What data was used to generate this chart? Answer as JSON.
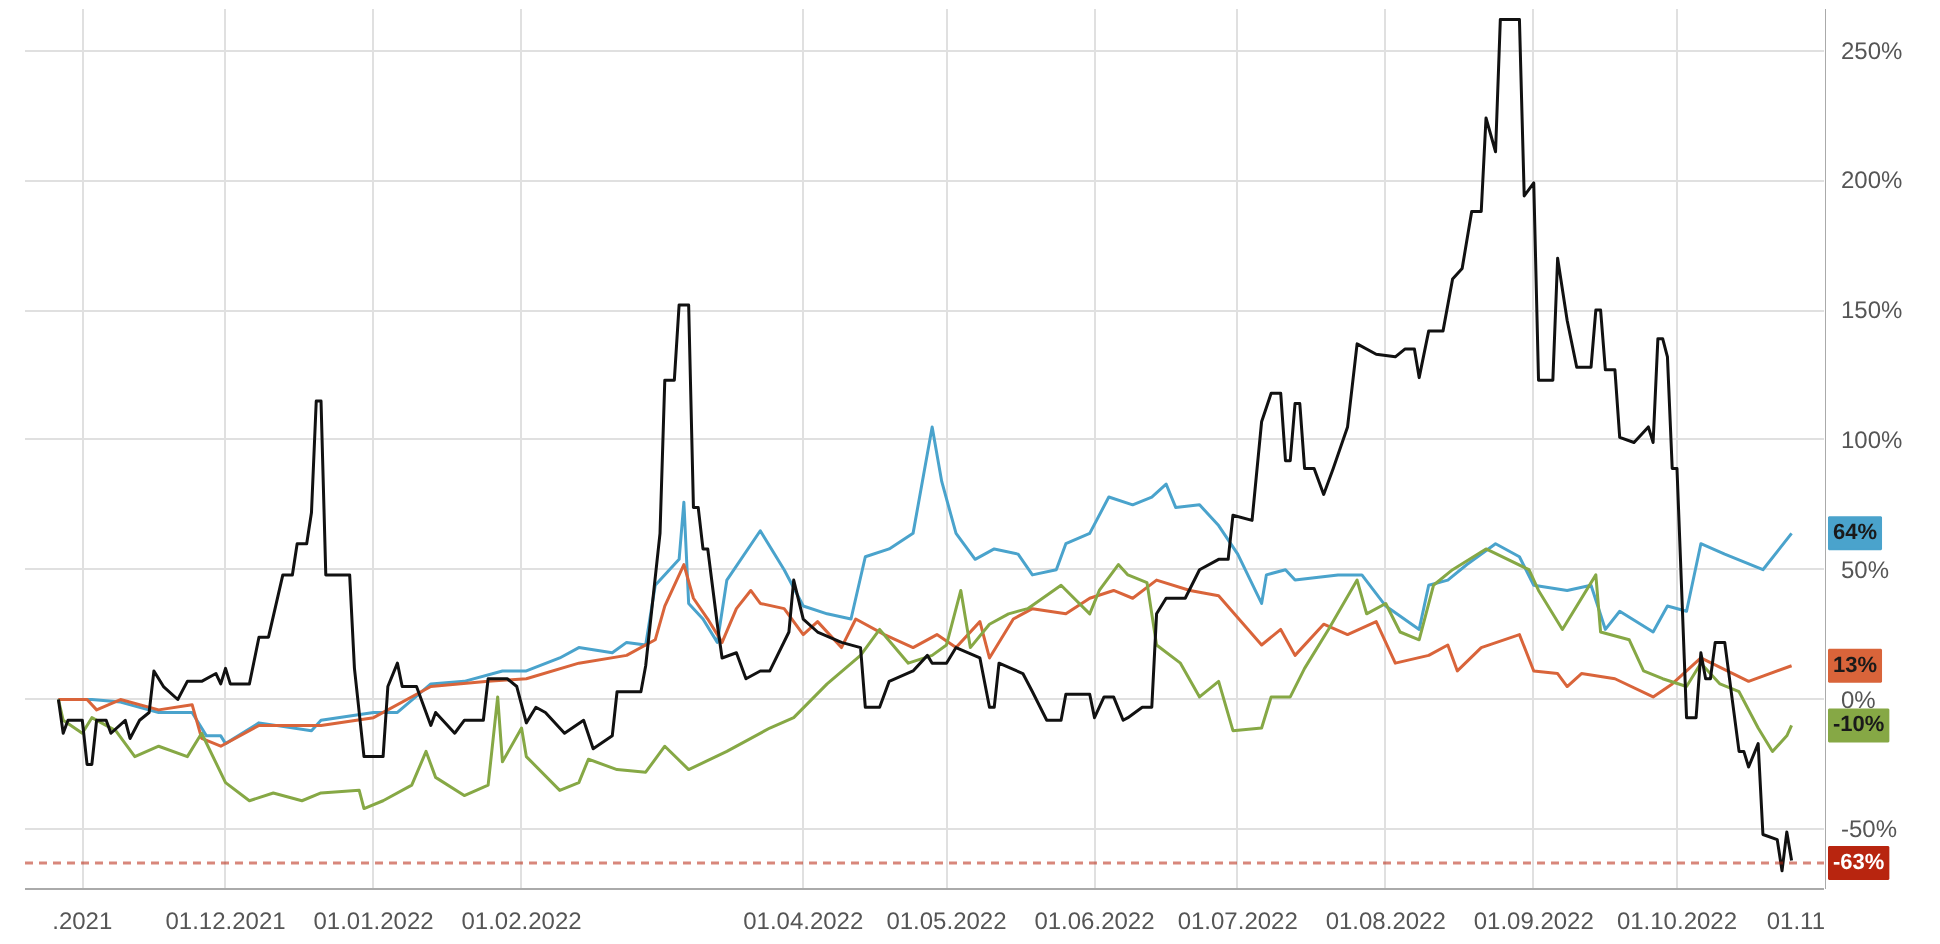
{
  "chart_data": {
    "type": "line",
    "grid": true,
    "xlim": [
      "2021-10-20",
      "2022-11-01"
    ],
    "xticks": [
      {
        "value": "2021-11-01",
        "label": ".2021"
      },
      {
        "value": "2021-12-01",
        "label": "01.12.2021"
      },
      {
        "value": "2022-01-01",
        "label": "01.01.2022"
      },
      {
        "value": "2022-02-01",
        "label": "01.02.2022"
      },
      {
        "value": "2022-04-01",
        "label": "01.04.2022"
      },
      {
        "value": "2022-05-01",
        "label": "01.05.2022"
      },
      {
        "value": "2022-06-01",
        "label": "01.06.2022"
      },
      {
        "value": "2022-07-01",
        "label": "01.07.2022"
      },
      {
        "value": "2022-08-01",
        "label": "01.08.2022"
      },
      {
        "value": "2022-09-01",
        "label": "01.09.2022"
      },
      {
        "value": "2022-10-01",
        "label": "01.10.2022"
      },
      {
        "value": "2022-11-01",
        "label": "01.11"
      }
    ],
    "ylim": [
      -73,
      266
    ],
    "yticks": [
      {
        "value": -50,
        "label": "-50%"
      },
      {
        "value": 0,
        "label": "0%"
      },
      {
        "value": 50,
        "label": "50%"
      },
      {
        "value": 100,
        "label": "100%"
      },
      {
        "value": 150,
        "label": "150%"
      },
      {
        "value": 200,
        "label": "200%"
      },
      {
        "value": 250,
        "label": "250%"
      }
    ],
    "ref_lines": [
      {
        "axis": "y",
        "value": -63,
        "label": "-63%",
        "color": "#b8250f",
        "line_style": "dashed"
      }
    ],
    "series": [
      {
        "color": "#4aa3cc",
        "value_labels": [
          null,
          null,
          null,
          null,
          null,
          null,
          null,
          null,
          null,
          null,
          null,
          null,
          null,
          null,
          null,
          null,
          null,
          null,
          null,
          null,
          null,
          null,
          null,
          null,
          null,
          null,
          null,
          null,
          null,
          null,
          null,
          null,
          null,
          null,
          null,
          null,
          null,
          null,
          null,
          null,
          null,
          null,
          null,
          null,
          null,
          null,
          null,
          null,
          null,
          null,
          null,
          null,
          null,
          null,
          null,
          null,
          null,
          null,
          null,
          null,
          null,
          null,
          null,
          null,
          null,
          null,
          null,
          null,
          null,
          null,
          null,
          null,
          null,
          null,
          null,
          null,
          null,
          null,
          null,
          "64%"
        ],
        "x": [
          "2021-10-27",
          "2021-11-03",
          "2021-11-09",
          "2021-11-17",
          "2021-11-24",
          "2021-11-27",
          "2021-11-30",
          "2021-12-01",
          "2021-12-08",
          "2021-12-19",
          "2021-12-21",
          "2022-01-01",
          "2022-01-06",
          "2022-01-13",
          "2022-01-20",
          "2022-01-28",
          "2022-02-02",
          "2022-02-09",
          "2022-02-13",
          "2022-02-20",
          "2022-02-23",
          "2022-02-27",
          "2022-03-01",
          "2022-03-06",
          "2022-03-07",
          "2022-03-08",
          "2022-03-11",
          "2022-03-14",
          "2022-03-16",
          "2022-03-23",
          "2022-03-28",
          "2022-04-01",
          "2022-04-06",
          "2022-04-11",
          "2022-04-14",
          "2022-04-19",
          "2022-04-24",
          "2022-04-28",
          "2022-04-30",
          "2022-05-03",
          "2022-05-07",
          "2022-05-11",
          "2022-05-16",
          "2022-05-19",
          "2022-05-24",
          "2022-05-26",
          "2022-05-31",
          "2022-06-04",
          "2022-06-09",
          "2022-06-13",
          "2022-06-16",
          "2022-06-18",
          "2022-06-23",
          "2022-06-27",
          "2022-07-01",
          "2022-07-06",
          "2022-07-07",
          "2022-07-11",
          "2022-07-13",
          "2022-07-22",
          "2022-07-27",
          "2022-08-01",
          "2022-08-08",
          "2022-08-10",
          "2022-08-14",
          "2022-08-18",
          "2022-08-24",
          "2022-08-29",
          "2022-09-01",
          "2022-09-08",
          "2022-09-13",
          "2022-09-16",
          "2022-09-19",
          "2022-09-26",
          "2022-09-29",
          "2022-10-03",
          "2022-10-06",
          "2022-10-11",
          "2022-10-19",
          "2022-10-25"
        ],
        "values": [
          0,
          0,
          -1,
          -5,
          -5,
          -14,
          -14,
          -17,
          -9,
          -12,
          -8,
          -5,
          -5,
          6,
          7,
          11,
          11,
          16,
          20,
          18,
          22,
          21,
          44,
          54,
          76,
          37,
          31,
          22,
          46,
          65,
          50,
          36,
          33,
          31,
          55,
          58,
          64,
          105,
          84,
          64,
          54,
          58,
          56,
          48,
          50,
          60,
          64,
          78,
          75,
          78,
          83,
          74,
          75,
          67,
          56,
          37,
          48,
          50,
          46,
          48,
          48,
          36,
          27,
          44,
          46,
          52,
          60,
          55,
          44,
          42,
          44,
          27,
          34,
          26,
          36,
          34,
          60,
          56,
          50,
          64
        ]
      },
      {
        "color": "#d9643a",
        "value_labels": [
          null,
          null,
          null,
          null,
          null,
          null,
          null,
          null,
          null,
          null,
          null,
          null,
          null,
          null,
          null,
          null,
          null,
          null,
          null,
          null,
          null,
          null,
          null,
          null,
          null,
          null,
          null,
          null,
          null,
          null,
          null,
          null,
          null,
          null,
          null,
          null,
          null,
          null,
          null,
          null,
          null,
          null,
          null,
          null,
          null,
          null,
          null,
          null,
          null,
          null,
          null,
          null,
          null,
          null,
          null,
          null,
          null,
          null,
          null,
          null,
          null,
          null,
          null,
          null,
          null,
          null,
          "13%"
        ],
        "x": [
          "2021-10-27",
          "2021-11-02",
          "2021-11-04",
          "2021-11-09",
          "2021-11-17",
          "2021-11-24",
          "2021-11-26",
          "2021-11-30",
          "2021-12-08",
          "2021-12-21",
          "2022-01-01",
          "2022-01-13",
          "2022-01-25",
          "2022-02-02",
          "2022-02-13",
          "2022-02-23",
          "2022-03-01",
          "2022-03-03",
          "2022-03-07",
          "2022-03-09",
          "2022-03-12",
          "2022-03-15",
          "2022-03-18",
          "2022-03-21",
          "2022-03-23",
          "2022-03-28",
          "2022-04-01",
          "2022-04-04",
          "2022-04-09",
          "2022-04-12",
          "2022-04-18",
          "2022-04-24",
          "2022-04-29",
          "2022-05-03",
          "2022-05-08",
          "2022-05-10",
          "2022-05-15",
          "2022-05-19",
          "2022-05-26",
          "2022-05-31",
          "2022-06-05",
          "2022-06-09",
          "2022-06-14",
          "2022-06-21",
          "2022-06-27",
          "2022-07-06",
          "2022-07-10",
          "2022-07-13",
          "2022-07-19",
          "2022-07-24",
          "2022-07-30",
          "2022-08-03",
          "2022-08-10",
          "2022-08-14",
          "2022-08-16",
          "2022-08-21",
          "2022-08-29",
          "2022-09-01",
          "2022-09-06",
          "2022-09-08",
          "2022-09-11",
          "2022-09-18",
          "2022-09-26",
          "2022-09-30",
          "2022-10-06",
          "2022-10-16",
          "2022-10-25"
        ],
        "values": [
          0,
          0,
          -4,
          0,
          -4,
          -2,
          -15,
          -18,
          -10,
          -10,
          -7,
          5,
          7,
          8,
          14,
          17,
          23,
          36,
          52,
          39,
          31,
          22,
          35,
          42,
          37,
          35,
          25,
          30,
          20,
          31,
          25,
          20,
          25,
          20,
          30,
          16,
          31,
          35,
          33,
          39,
          42,
          39,
          46,
          42,
          40,
          21,
          27,
          17,
          29,
          25,
          30,
          14,
          17,
          21,
          11,
          20,
          25,
          11,
          10,
          5,
          10,
          8,
          1,
          6,
          16,
          7,
          13
        ]
      },
      {
        "color": "#86a845",
        "value_labels": [
          null,
          null,
          null,
          null,
          null,
          null,
          null,
          null,
          null,
          null,
          null,
          null,
          null,
          null,
          null,
          null,
          null,
          null,
          null,
          null,
          null,
          null,
          null,
          null,
          null,
          null,
          null,
          null,
          null,
          null,
          null,
          null,
          null,
          null,
          null,
          null,
          null,
          null,
          null,
          null,
          null,
          null,
          null,
          null,
          null,
          null,
          null,
          null,
          null,
          null,
          null,
          null,
          null,
          null,
          null,
          null,
          null,
          null,
          null,
          null,
          null,
          null,
          null,
          null,
          null,
          null,
          null,
          null,
          null,
          null,
          null,
          null,
          null,
          null,
          null,
          null,
          null,
          null,
          null,
          null,
          null,
          null,
          null,
          null,
          null,
          null,
          "-10%"
        ],
        "x": [
          "2021-10-27",
          "2021-10-28",
          "2021-11-01",
          "2021-11-03",
          "2021-11-08",
          "2021-11-12",
          "2021-11-17",
          "2021-11-23",
          "2021-11-26",
          "2021-12-01",
          "2021-12-06",
          "2021-12-11",
          "2021-12-17",
          "2021-12-21",
          "2021-12-29",
          "2021-12-30",
          "2022-01-03",
          "2022-01-09",
          "2022-01-12",
          "2022-01-14",
          "2022-01-20",
          "2022-01-25",
          "2022-01-27",
          "2022-01-28",
          "2022-02-01",
          "2022-02-02",
          "2022-02-09",
          "2022-02-13",
          "2022-02-15",
          "2022-02-21",
          "2022-02-27",
          "2022-03-03",
          "2022-03-08",
          "2022-03-16",
          "2022-03-25",
          "2022-03-30",
          "2022-04-06",
          "2022-04-13",
          "2022-04-17",
          "2022-04-23",
          "2022-04-28",
          "2022-05-01",
          "2022-05-04",
          "2022-05-06",
          "2022-05-10",
          "2022-05-14",
          "2022-05-18",
          "2022-05-25",
          "2022-05-31",
          "2022-06-02",
          "2022-06-06",
          "2022-06-08",
          "2022-06-12",
          "2022-06-14",
          "2022-06-19",
          "2022-06-23",
          "2022-06-27",
          "2022-06-30",
          "2022-07-06",
          "2022-07-08",
          "2022-07-12",
          "2022-07-15",
          "2022-07-20",
          "2022-07-26",
          "2022-07-28",
          "2022-08-01",
          "2022-08-04",
          "2022-08-08",
          "2022-08-11",
          "2022-08-15",
          "2022-08-22",
          "2022-08-31",
          "2022-09-02",
          "2022-09-07",
          "2022-09-14",
          "2022-09-15",
          "2022-09-21",
          "2022-09-24",
          "2022-09-28",
          "2022-10-03",
          "2022-10-06",
          "2022-10-10",
          "2022-10-14",
          "2022-10-18",
          "2022-10-21",
          "2022-10-24",
          "2022-10-25"
        ],
        "values": [
          0,
          -8,
          -13,
          -7,
          -12,
          -22,
          -18,
          -22,
          -13,
          -32,
          -39,
          -36,
          -39,
          -36,
          -35,
          -42,
          -39,
          -33,
          -20,
          -30,
          -37,
          -33,
          1,
          -24,
          -11,
          -22,
          -35,
          -32,
          -23,
          -27,
          -28,
          -18,
          -27,
          -20,
          -11,
          -7,
          6,
          17,
          27,
          14,
          17,
          21,
          42,
          20,
          29,
          33,
          35,
          44,
          33,
          42,
          52,
          48,
          45,
          21,
          14,
          1,
          7,
          -12,
          -11,
          1,
          1,
          12,
          27,
          46,
          33,
          37,
          26,
          23,
          44,
          50,
          58,
          50,
          42,
          27,
          48,
          26,
          23,
          11,
          8,
          5,
          14,
          6,
          3,
          -11,
          -20,
          -14,
          -10
        ]
      },
      {
        "color": "#111111",
        "x": [
          "2021-10-27",
          "2021-10-28",
          "2021-10-29",
          "2021-11-01",
          "2021-11-02",
          "2021-11-03",
          "2021-11-04",
          "2021-11-06",
          "2021-11-07",
          "2021-11-10",
          "2021-11-11",
          "2021-11-13",
          "2021-11-15",
          "2021-11-16",
          "2021-11-18",
          "2021-11-21",
          "2021-11-23",
          "2021-11-26",
          "2021-11-29",
          "2021-11-30",
          "2021-12-01",
          "2021-12-02",
          "2021-12-06",
          "2021-12-08",
          "2021-12-10",
          "2021-12-13",
          "2021-12-15",
          "2021-12-16",
          "2021-12-18",
          "2021-12-19",
          "2021-12-20",
          "2021-12-21",
          "2021-12-22",
          "2021-12-27",
          "2021-12-28",
          "2021-12-30",
          "2022-01-03",
          "2022-01-04",
          "2022-01-06",
          "2022-01-07",
          "2022-01-10",
          "2022-01-13",
          "2022-01-14",
          "2022-01-18",
          "2022-01-20",
          "2022-01-24",
          "2022-01-25",
          "2022-01-29",
          "2022-01-31",
          "2022-02-02",
          "2022-02-04",
          "2022-02-06",
          "2022-02-10",
          "2022-02-14",
          "2022-02-16",
          "2022-02-20",
          "2022-02-21",
          "2022-02-26",
          "2022-02-27",
          "2022-03-02",
          "2022-03-03",
          "2022-03-05",
          "2022-03-06",
          "2022-03-08",
          "2022-03-09",
          "2022-03-10",
          "2022-03-11",
          "2022-03-12",
          "2022-03-14",
          "2022-03-15",
          "2022-03-18",
          "2022-03-20",
          "2022-03-23",
          "2022-03-25",
          "2022-03-29",
          "2022-03-30",
          "2022-04-01",
          "2022-04-04",
          "2022-04-09",
          "2022-04-13",
          "2022-04-14",
          "2022-04-17",
          "2022-04-19",
          "2022-04-24",
          "2022-04-27",
          "2022-04-28",
          "2022-05-01",
          "2022-05-03",
          "2022-05-08",
          "2022-05-10",
          "2022-05-11",
          "2022-05-12",
          "2022-05-17",
          "2022-05-19",
          "2022-05-22",
          "2022-05-25",
          "2022-05-26",
          "2022-05-31",
          "2022-06-01",
          "2022-06-03",
          "2022-06-05",
          "2022-06-07",
          "2022-06-08",
          "2022-06-11",
          "2022-06-13",
          "2022-06-14",
          "2022-06-16",
          "2022-06-20",
          "2022-06-23",
          "2022-06-27",
          "2022-06-29",
          "2022-06-30",
          "2022-07-04",
          "2022-07-06",
          "2022-07-08",
          "2022-07-10",
          "2022-07-11",
          "2022-07-12",
          "2022-07-13",
          "2022-07-14",
          "2022-07-15",
          "2022-07-17",
          "2022-07-19",
          "2022-07-21",
          "2022-07-24",
          "2022-07-26",
          "2022-07-30",
          "2022-08-03",
          "2022-08-05",
          "2022-08-07",
          "2022-08-08",
          "2022-08-10",
          "2022-08-13",
          "2022-08-15",
          "2022-08-17",
          "2022-08-19",
          "2022-08-21",
          "2022-08-22",
          "2022-08-24",
          "2022-08-25",
          "2022-08-29",
          "2022-08-30",
          "2022-09-01",
          "2022-09-02",
          "2022-09-05",
          "2022-09-06",
          "2022-09-08",
          "2022-09-10",
          "2022-09-13",
          "2022-09-14",
          "2022-09-15",
          "2022-09-16",
          "2022-09-18",
          "2022-09-19",
          "2022-09-22",
          "2022-09-25",
          "2022-09-26",
          "2022-09-27",
          "2022-09-28",
          "2022-09-29",
          "2022-09-30",
          "2022-10-01",
          "2022-10-03",
          "2022-10-05",
          "2022-10-06",
          "2022-10-07",
          "2022-10-08",
          "2022-10-09",
          "2022-10-11",
          "2022-10-14",
          "2022-10-15",
          "2022-10-16",
          "2022-10-18",
          "2022-10-19",
          "2022-10-22",
          "2022-10-23",
          "2022-10-24",
          "2022-10-25"
        ],
        "values": [
          0,
          -13,
          -8,
          -8,
          -25,
          -25,
          -8,
          -8,
          -13,
          -8,
          -15,
          -8,
          -5,
          11,
          5,
          0,
          7,
          7,
          10,
          6,
          12,
          6,
          6,
          24,
          24,
          48,
          48,
          60,
          60,
          72,
          115,
          115,
          48,
          48,
          12,
          -22,
          -22,
          5,
          14,
          5,
          5,
          -10,
          -5,
          -13,
          -8,
          -8,
          8,
          8,
          5,
          -9,
          -3,
          -5,
          -13,
          -8,
          -19,
          -14,
          3,
          3,
          13,
          64,
          123,
          123,
          152,
          152,
          74,
          74,
          58,
          58,
          29,
          16,
          18,
          8,
          11,
          11,
          26,
          46,
          31,
          26,
          22,
          20,
          -3,
          -3,
          7,
          11,
          17,
          14,
          14,
          20,
          16,
          -3,
          -3,
          14,
          10,
          3,
          -8,
          -8,
          2,
          2,
          -7,
          1,
          1,
          -8,
          -7,
          -3,
          -3,
          33,
          39,
          39,
          50,
          54,
          54,
          71,
          69,
          107,
          118,
          118,
          92,
          92,
          114,
          114,
          89,
          89,
          79,
          89,
          105,
          137,
          133,
          132,
          135,
          135,
          124,
          142,
          142,
          162,
          166,
          188,
          188,
          224,
          211,
          262,
          262,
          194,
          199,
          123,
          123,
          170,
          146,
          128,
          128,
          150,
          150,
          127,
          127,
          101,
          99,
          105,
          99,
          139,
          139,
          132,
          89,
          89,
          -7,
          -7,
          18,
          8,
          8,
          22,
          22,
          -20,
          -20,
          -26,
          -17,
          -52,
          -54,
          -66,
          -51,
          -62
        ]
      }
    ]
  }
}
